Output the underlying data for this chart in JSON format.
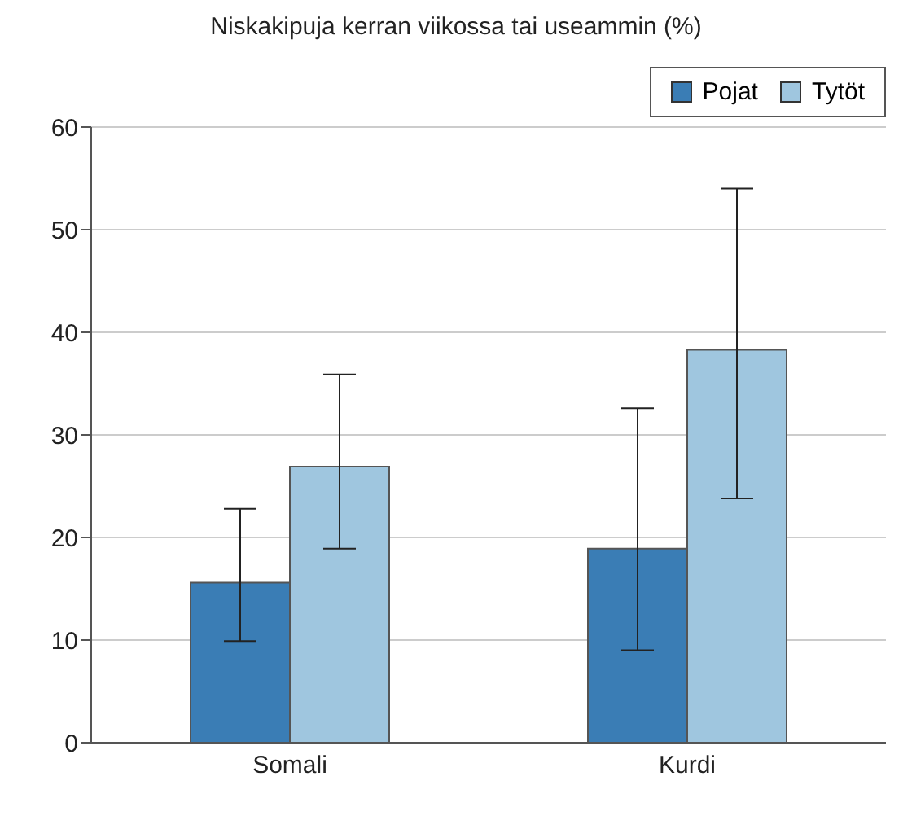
{
  "chart_data": {
    "type": "bar",
    "title": "Niskakipuja kerran viikossa tai useammin (%)",
    "categories": [
      "Somali",
      "Kurdi"
    ],
    "series": [
      {
        "name": "Pojat",
        "color": "#3a7db5",
        "values": [
          15.6,
          18.9
        ],
        "errors": [
          [
            9.9,
            22.8
          ],
          [
            9.0,
            32.6
          ]
        ]
      },
      {
        "name": "Tytöt",
        "color": "#9fc6df",
        "values": [
          26.9,
          38.3
        ],
        "errors": [
          [
            18.9,
            35.9
          ],
          [
            23.8,
            54
          ]
        ]
      }
    ],
    "ylim": [
      0,
      60
    ],
    "yticks": [
      0,
      10,
      20,
      30,
      40,
      50,
      60
    ],
    "grid": "y",
    "legend": "top right"
  }
}
